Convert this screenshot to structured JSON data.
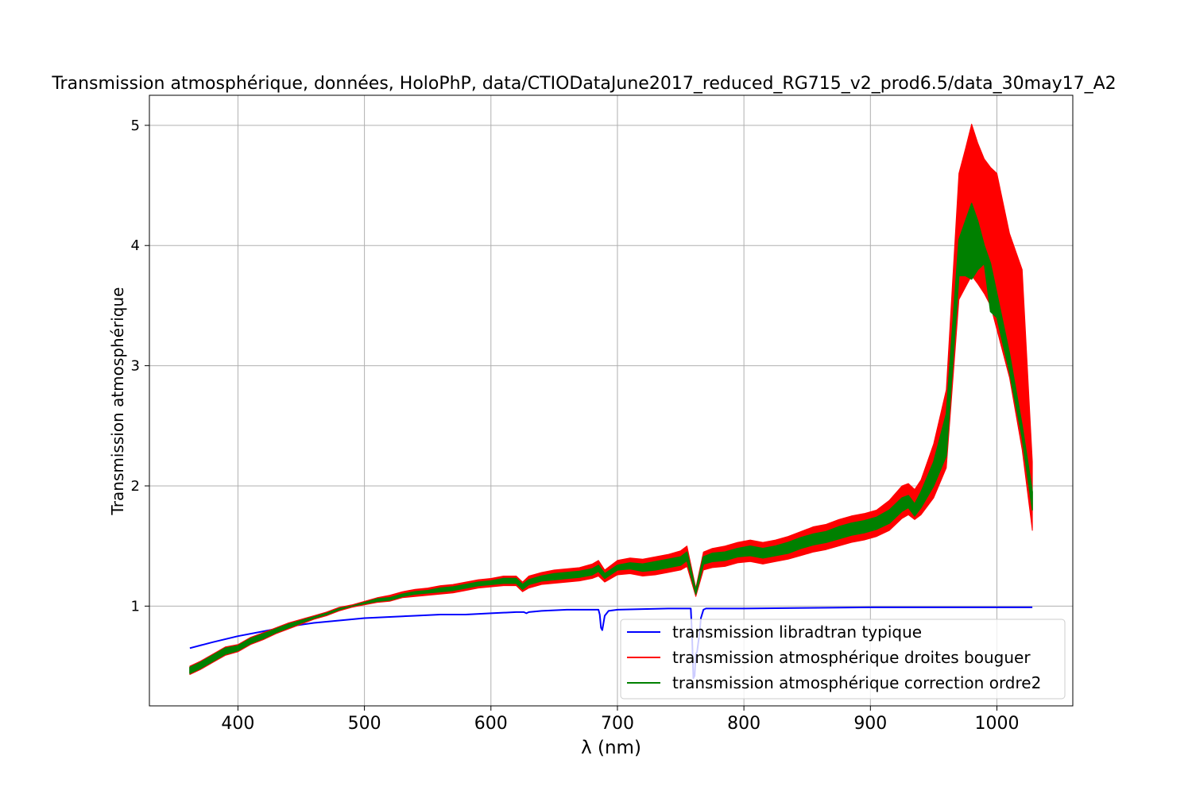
{
  "chart_data": {
    "type": "line",
    "title": "Transmission atmosphérique, données, HoloPhP, data/CTIODataJune2017_reduced_RG715_v2_prod6.5/data_30may17_A2",
    "xlabel": "λ (nm)",
    "ylabel": "Transmission atmosphérique",
    "xlim": [
      330,
      1060
    ],
    "ylim": [
      0.17,
      5.25
    ],
    "xticks": [
      400,
      500,
      600,
      700,
      800,
      900,
      1000
    ],
    "yticks": [
      1,
      2,
      3,
      4,
      5
    ],
    "grid": true,
    "legend_position": "lower-right",
    "series": [
      {
        "name": "transmission libradtran typique",
        "color": "#0000ff",
        "style": "line",
        "x": [
          362,
          380,
          400,
          420,
          440,
          460,
          480,
          500,
          520,
          540,
          560,
          580,
          600,
          620,
          626,
          628,
          630,
          640,
          660,
          680,
          685,
          686,
          687,
          688,
          690,
          693,
          700,
          720,
          740,
          758,
          759,
          760,
          761,
          762,
          763,
          764,
          765,
          766,
          768,
          770,
          800,
          850,
          900,
          950,
          1000,
          1028
        ],
        "y": [
          0.65,
          0.7,
          0.75,
          0.79,
          0.83,
          0.86,
          0.88,
          0.9,
          0.91,
          0.92,
          0.93,
          0.93,
          0.94,
          0.95,
          0.95,
          0.94,
          0.95,
          0.96,
          0.97,
          0.97,
          0.97,
          0.93,
          0.82,
          0.8,
          0.92,
          0.96,
          0.97,
          0.975,
          0.98,
          0.98,
          0.75,
          0.4,
          0.42,
          0.6,
          0.62,
          0.7,
          0.78,
          0.9,
          0.97,
          0.98,
          0.98,
          0.985,
          0.99,
          0.99,
          0.99,
          0.99
        ]
      },
      {
        "name": "transmission atmosphérique droites bouguer",
        "color": "#ff0000",
        "style": "band",
        "x": [
          362,
          370,
          380,
          390,
          400,
          410,
          420,
          430,
          440,
          450,
          460,
          470,
          480,
          490,
          500,
          510,
          520,
          530,
          540,
          550,
          560,
          570,
          580,
          590,
          600,
          610,
          620,
          625,
          630,
          640,
          650,
          660,
          670,
          680,
          685,
          690,
          700,
          710,
          720,
          730,
          740,
          750,
          755,
          762,
          768,
          775,
          785,
          795,
          805,
          815,
          825,
          835,
          845,
          855,
          865,
          875,
          885,
          895,
          905,
          915,
          925,
          930,
          935,
          940,
          950,
          960,
          970,
          975,
          980,
          985,
          990,
          995,
          1000,
          1010,
          1020,
          1028
        ],
        "upper": [
          0.5,
          0.54,
          0.6,
          0.66,
          0.68,
          0.74,
          0.78,
          0.82,
          0.86,
          0.89,
          0.92,
          0.95,
          0.99,
          1.01,
          1.04,
          1.07,
          1.09,
          1.12,
          1.14,
          1.15,
          1.17,
          1.18,
          1.2,
          1.22,
          1.23,
          1.25,
          1.25,
          1.2,
          1.25,
          1.28,
          1.3,
          1.31,
          1.32,
          1.35,
          1.38,
          1.3,
          1.38,
          1.4,
          1.39,
          1.41,
          1.43,
          1.46,
          1.5,
          1.15,
          1.45,
          1.48,
          1.5,
          1.53,
          1.55,
          1.53,
          1.55,
          1.58,
          1.62,
          1.66,
          1.68,
          1.72,
          1.75,
          1.77,
          1.8,
          1.88,
          2.0,
          2.02,
          1.97,
          2.05,
          2.35,
          2.8,
          4.6,
          4.8,
          5.01,
          4.85,
          4.72,
          4.65,
          4.6,
          4.1,
          3.8,
          2.2
        ],
        "lower": [
          0.43,
          0.47,
          0.53,
          0.59,
          0.62,
          0.68,
          0.72,
          0.77,
          0.81,
          0.85,
          0.89,
          0.92,
          0.96,
          0.99,
          1.01,
          1.03,
          1.04,
          1.07,
          1.08,
          1.09,
          1.1,
          1.11,
          1.13,
          1.15,
          1.16,
          1.17,
          1.17,
          1.12,
          1.15,
          1.18,
          1.19,
          1.2,
          1.21,
          1.23,
          1.25,
          1.2,
          1.26,
          1.27,
          1.25,
          1.26,
          1.28,
          1.3,
          1.33,
          1.08,
          1.3,
          1.32,
          1.33,
          1.36,
          1.37,
          1.35,
          1.37,
          1.39,
          1.42,
          1.45,
          1.47,
          1.5,
          1.53,
          1.55,
          1.58,
          1.63,
          1.73,
          1.76,
          1.72,
          1.76,
          1.9,
          2.15,
          3.55,
          3.65,
          3.75,
          3.68,
          3.6,
          3.5,
          3.3,
          2.9,
          2.3,
          1.63
        ]
      },
      {
        "name": "transmission atmosphérique correction ordre2",
        "color": "#008000",
        "style": "band",
        "x": [
          362,
          370,
          380,
          390,
          400,
          410,
          420,
          430,
          440,
          450,
          460,
          470,
          480,
          490,
          500,
          510,
          520,
          530,
          540,
          550,
          560,
          570,
          580,
          590,
          600,
          610,
          620,
          625,
          630,
          640,
          650,
          660,
          670,
          680,
          685,
          690,
          700,
          710,
          720,
          730,
          740,
          750,
          755,
          762,
          768,
          775,
          785,
          795,
          805,
          815,
          825,
          835,
          845,
          855,
          865,
          875,
          885,
          895,
          905,
          915,
          925,
          930,
          935,
          940,
          950,
          960,
          970,
          975,
          980,
          985,
          990,
          995,
          1000,
          1010,
          1020,
          1028
        ],
        "upper": [
          0.49,
          0.53,
          0.59,
          0.65,
          0.67,
          0.73,
          0.77,
          0.81,
          0.85,
          0.88,
          0.91,
          0.94,
          0.98,
          1.0,
          1.03,
          1.06,
          1.07,
          1.1,
          1.12,
          1.13,
          1.15,
          1.16,
          1.18,
          1.2,
          1.21,
          1.23,
          1.23,
          1.18,
          1.22,
          1.25,
          1.27,
          1.28,
          1.29,
          1.31,
          1.34,
          1.27,
          1.34,
          1.36,
          1.35,
          1.37,
          1.39,
          1.41,
          1.45,
          1.13,
          1.41,
          1.44,
          1.45,
          1.48,
          1.5,
          1.48,
          1.5,
          1.53,
          1.57,
          1.6,
          1.62,
          1.66,
          1.69,
          1.71,
          1.74,
          1.8,
          1.9,
          1.92,
          1.85,
          1.95,
          2.2,
          2.6,
          4.05,
          4.2,
          4.35,
          4.2,
          4.0,
          3.85,
          3.6,
          3.1,
          2.5,
          1.95
        ],
        "lower": [
          0.44,
          0.48,
          0.54,
          0.6,
          0.63,
          0.69,
          0.73,
          0.78,
          0.82,
          0.86,
          0.9,
          0.93,
          0.97,
          1.0,
          1.02,
          1.04,
          1.05,
          1.08,
          1.1,
          1.11,
          1.12,
          1.13,
          1.15,
          1.17,
          1.18,
          1.19,
          1.19,
          1.14,
          1.18,
          1.21,
          1.22,
          1.23,
          1.24,
          1.26,
          1.29,
          1.23,
          1.3,
          1.31,
          1.29,
          1.3,
          1.32,
          1.34,
          1.38,
          1.1,
          1.35,
          1.37,
          1.38,
          1.41,
          1.42,
          1.4,
          1.42,
          1.44,
          1.48,
          1.51,
          1.53,
          1.56,
          1.59,
          1.61,
          1.64,
          1.69,
          1.79,
          1.82,
          1.75,
          1.82,
          2.0,
          2.25,
          3.75,
          3.75,
          3.72,
          3.8,
          3.85,
          3.45,
          3.4,
          2.95,
          2.4,
          1.8
        ]
      }
    ]
  }
}
